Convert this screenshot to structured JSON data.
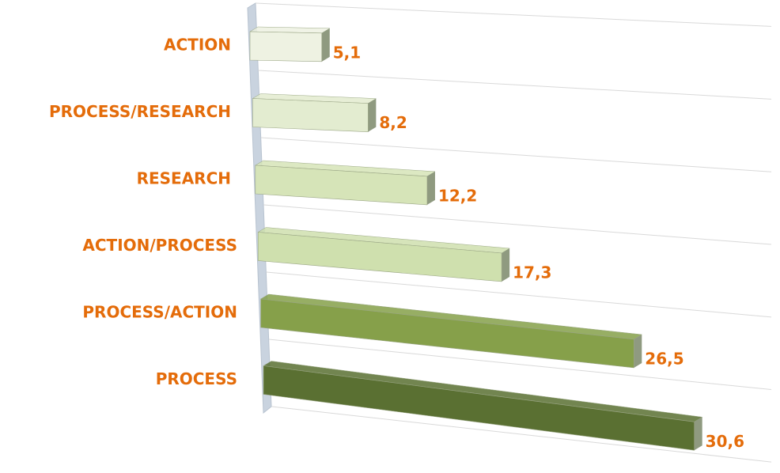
{
  "chart_data": {
    "type": "bar3d",
    "categories": [
      "ACTION",
      "PROCESS/RESEARCH",
      "RESEARCH",
      "ACTION/PROCESS",
      "PROCESS/ACTION",
      "PROCESS"
    ],
    "values": [
      5.1,
      8.2,
      12.2,
      17.3,
      26.5,
      30.6
    ],
    "value_labels": [
      "5,1",
      "8,2",
      "12,2",
      "17,3",
      "26,5",
      "30,6"
    ],
    "colors": [
      "#eef2e2",
      "#e3ecd0",
      "#d6e4b8",
      "#cfe0ae",
      "#86a04a",
      "#5a7032"
    ],
    "label_color": "#e46c0a"
  }
}
